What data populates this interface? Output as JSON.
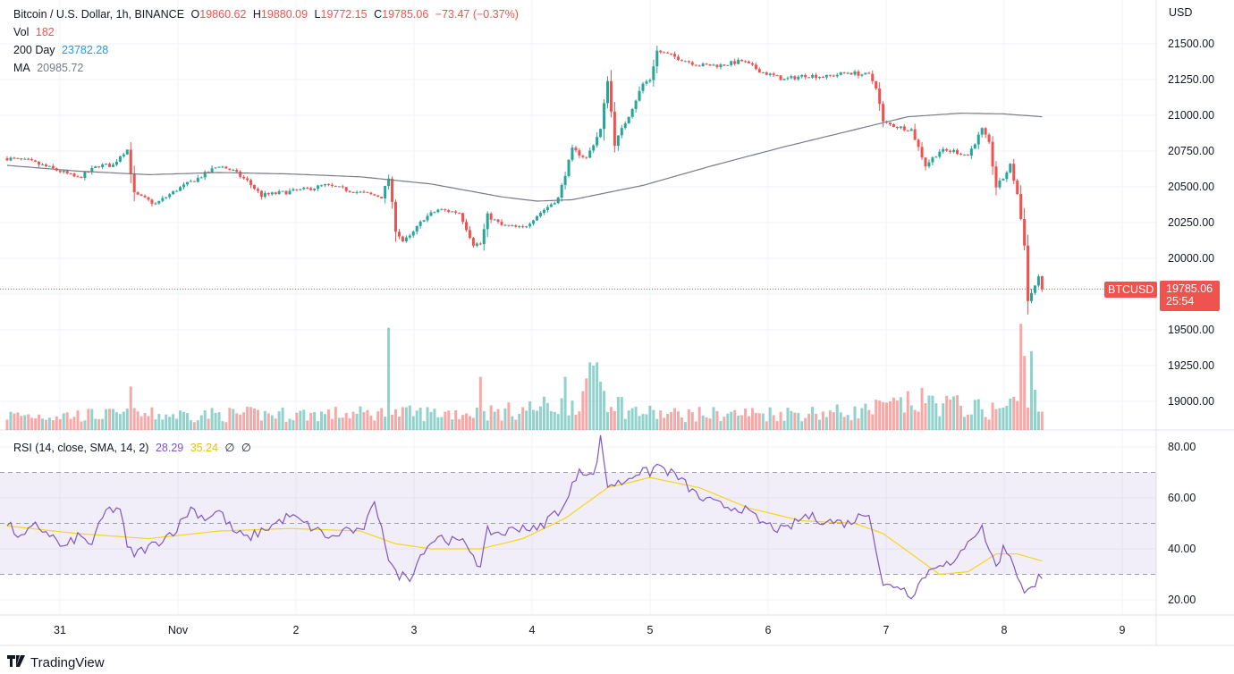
{
  "header": {
    "symbol": "Bitcoin / U.S. Dollar, 1h, BINANCE",
    "o_label": "O",
    "o_value": "19860.62",
    "h_label": "H",
    "h_value": "19880.09",
    "l_label": "L",
    "l_value": "19772.15",
    "c_label": "C",
    "c_value": "19785.06",
    "change": "−73.47 (−0.37%)"
  },
  "vol": {
    "label": "Vol",
    "value": "182"
  },
  "ma200": {
    "label": "200 Day",
    "value": "23782.28"
  },
  "ma": {
    "label": "MA",
    "value": "20985.72"
  },
  "currency": "USD",
  "last_price": {
    "symbol_tag": "BTCUSD",
    "value": "19785.06",
    "countdown": "25:54"
  },
  "rsi_legend": {
    "label": "RSI (14, close, SMA, 14, 2)",
    "rsi": "28.29",
    "sma": "35.24",
    "extra1": "∅",
    "extra2": "∅"
  },
  "branding": {
    "logo_icon": "tradingview-logo-icon",
    "name": "TradingView"
  },
  "colors": {
    "up": "#26a69a",
    "down": "#ef5350",
    "ma_line": "#787b86",
    "rsi_line": "#7e57c2",
    "rsi_sma": "#f5d61a",
    "rsi_band": "#7e57c2"
  },
  "chart_data": [
    {
      "type": "candlestick",
      "title": "Bitcoin / U.S. Dollar, 1h, BINANCE",
      "x_ticks": [
        "31",
        "Nov",
        "2",
        "3",
        "4",
        "5",
        "6",
        "7",
        "8",
        "9"
      ],
      "y_ticks": [
        "21500.00",
        "21250.00",
        "21000.00",
        "20750.00",
        "20500.00",
        "20250.00",
        "20000.00",
        "19750.00",
        "19500.00",
        "19250.00",
        "19000.00"
      ],
      "ylim": [
        18850,
        21750
      ],
      "grid": true,
      "price_anchors": [
        [
          0,
          20700
        ],
        [
          6,
          20680
        ],
        [
          10,
          20650
        ],
        [
          16,
          20600
        ],
        [
          20,
          20560
        ],
        [
          26,
          20650
        ],
        [
          30,
          20650
        ],
        [
          32,
          20720
        ],
        [
          34,
          20760
        ],
        [
          36,
          20450
        ],
        [
          42,
          20380
        ],
        [
          48,
          20480
        ],
        [
          54,
          20560
        ],
        [
          60,
          20650
        ],
        [
          64,
          20610
        ],
        [
          68,
          20540
        ],
        [
          72,
          20440
        ],
        [
          78,
          20460
        ],
        [
          84,
          20480
        ],
        [
          90,
          20510
        ],
        [
          94,
          20490
        ],
        [
          98,
          20470
        ],
        [
          102,
          20450
        ],
        [
          106,
          20430
        ],
        [
          108,
          20560
        ],
        [
          110,
          20200
        ],
        [
          112,
          20120
        ],
        [
          114,
          20150
        ],
        [
          118,
          20280
        ],
        [
          122,
          20340
        ],
        [
          128,
          20320
        ],
        [
          132,
          20100
        ],
        [
          134,
          20100
        ],
        [
          136,
          20300
        ],
        [
          140,
          20230
        ],
        [
          146,
          20210
        ],
        [
          150,
          20300
        ],
        [
          156,
          20420
        ],
        [
          160,
          20760
        ],
        [
          164,
          20700
        ],
        [
          168,
          20900
        ],
        [
          170,
          21250
        ],
        [
          172,
          20800
        ],
        [
          176,
          21000
        ],
        [
          180,
          21220
        ],
        [
          182,
          21250
        ],
        [
          184,
          21450
        ],
        [
          190,
          21400
        ],
        [
          196,
          21350
        ],
        [
          202,
          21350
        ],
        [
          208,
          21380
        ],
        [
          214,
          21300
        ],
        [
          220,
          21250
        ],
        [
          226,
          21280
        ],
        [
          232,
          21270
        ],
        [
          238,
          21300
        ],
        [
          244,
          21280
        ],
        [
          246,
          21200
        ],
        [
          248,
          20950
        ],
        [
          252,
          20920
        ],
        [
          256,
          20900
        ],
        [
          260,
          20650
        ],
        [
          264,
          20750
        ],
        [
          268,
          20750
        ],
        [
          272,
          20720
        ],
        [
          276,
          20900
        ],
        [
          278,
          20800
        ],
        [
          280,
          20500
        ],
        [
          282,
          20560
        ],
        [
          284,
          20650
        ],
        [
          286,
          20450
        ],
        [
          288,
          20100
        ],
        [
          289,
          19700
        ],
        [
          290,
          19760
        ],
        [
          292,
          19860
        ],
        [
          293,
          19785
        ]
      ],
      "ma_anchors": [
        [
          0,
          20650
        ],
        [
          20,
          20610
        ],
        [
          40,
          20585
        ],
        [
          60,
          20600
        ],
        [
          80,
          20590
        ],
        [
          100,
          20570
        ],
        [
          120,
          20520
        ],
        [
          140,
          20430
        ],
        [
          150,
          20400
        ],
        [
          160,
          20410
        ],
        [
          180,
          20510
        ],
        [
          200,
          20650
        ],
        [
          220,
          20780
        ],
        [
          240,
          20900
        ],
        [
          255,
          20990
        ],
        [
          270,
          21015
        ],
        [
          282,
          21010
        ],
        [
          293,
          20990
        ]
      ],
      "volume_ylim": [
        0,
        700
      ],
      "volume_base": [
        [
          0,
          90
        ],
        [
          100,
          100
        ],
        [
          140,
          110
        ],
        [
          158,
          160
        ],
        [
          168,
          250
        ],
        [
          176,
          120
        ],
        [
          186,
          95
        ],
        [
          240,
          110
        ],
        [
          260,
          180
        ],
        [
          278,
          120
        ],
        [
          284,
          150
        ],
        [
          290,
          300
        ],
        [
          293,
          90
        ]
      ],
      "volume_spikes": [
        [
          35,
          270
        ],
        [
          108,
          635
        ],
        [
          134,
          330
        ],
        [
          158,
          330
        ],
        [
          165,
          420
        ],
        [
          166,
          400
        ],
        [
          167,
          420
        ],
        [
          168,
          300
        ],
        [
          287,
          660
        ],
        [
          288,
          460
        ],
        [
          290,
          490
        ],
        [
          291,
          250
        ]
      ],
      "series": [
        {
          "name": "Vol",
          "value": 182
        },
        {
          "name": "200 Day",
          "value": 23782.28
        },
        {
          "name": "MA",
          "value": 20985.72
        }
      ],
      "last": 19785.06
    },
    {
      "type": "line",
      "title": "RSI (14, close, SMA, 14, 2)",
      "y_ticks": [
        "80.00",
        "60.00",
        "40.00",
        "20.00"
      ],
      "ylim": [
        15,
        85
      ],
      "bands": [
        30,
        50,
        70
      ],
      "rsi_anchors": [
        [
          0,
          50
        ],
        [
          4,
          44
        ],
        [
          8,
          49
        ],
        [
          12,
          46
        ],
        [
          16,
          40
        ],
        [
          20,
          45
        ],
        [
          24,
          42
        ],
        [
          28,
          55
        ],
        [
          32,
          56
        ],
        [
          34,
          40
        ],
        [
          36,
          38
        ],
        [
          42,
          42
        ],
        [
          48,
          48
        ],
        [
          52,
          56
        ],
        [
          56,
          52
        ],
        [
          60,
          55
        ],
        [
          64,
          47
        ],
        [
          68,
          44
        ],
        [
          72,
          47
        ],
        [
          76,
          50
        ],
        [
          80,
          53
        ],
        [
          84,
          50
        ],
        [
          88,
          47
        ],
        [
          92,
          44
        ],
        [
          96,
          48
        ],
        [
          100,
          46
        ],
        [
          104,
          57
        ],
        [
          106,
          50
        ],
        [
          108,
          36
        ],
        [
          110,
          30
        ],
        [
          114,
          29
        ],
        [
          118,
          40
        ],
        [
          122,
          45
        ],
        [
          126,
          43
        ],
        [
          130,
          42
        ],
        [
          132,
          38
        ],
        [
          134,
          32
        ],
        [
          136,
          47
        ],
        [
          140,
          46
        ],
        [
          146,
          49
        ],
        [
          150,
          47
        ],
        [
          154,
          53
        ],
        [
          158,
          57
        ],
        [
          162,
          72
        ],
        [
          164,
          70
        ],
        [
          166,
          68
        ],
        [
          168,
          83
        ],
        [
          170,
          65
        ],
        [
          174,
          66
        ],
        [
          178,
          70
        ],
        [
          182,
          70
        ],
        [
          184,
          73
        ],
        [
          190,
          68
        ],
        [
          196,
          60
        ],
        [
          202,
          57
        ],
        [
          208,
          56
        ],
        [
          214,
          50
        ],
        [
          220,
          47
        ],
        [
          226,
          53
        ],
        [
          232,
          51
        ],
        [
          238,
          50
        ],
        [
          244,
          55
        ],
        [
          246,
          40
        ],
        [
          248,
          25
        ],
        [
          252,
          26
        ],
        [
          256,
          22
        ],
        [
          260,
          30
        ],
        [
          264,
          35
        ],
        [
          268,
          33
        ],
        [
          272,
          44
        ],
        [
          276,
          48
        ],
        [
          278,
          40
        ],
        [
          280,
          33
        ],
        [
          282,
          40
        ],
        [
          284,
          38
        ],
        [
          286,
          30
        ],
        [
          288,
          22
        ],
        [
          290,
          24
        ],
        [
          292,
          30
        ],
        [
          293,
          28.29
        ]
      ],
      "sma_anchors": [
        [
          0,
          49
        ],
        [
          20,
          46
        ],
        [
          40,
          44
        ],
        [
          60,
          47
        ],
        [
          80,
          48
        ],
        [
          100,
          47
        ],
        [
          110,
          42
        ],
        [
          120,
          40
        ],
        [
          134,
          40
        ],
        [
          146,
          44
        ],
        [
          158,
          52
        ],
        [
          170,
          64
        ],
        [
          182,
          68
        ],
        [
          196,
          64
        ],
        [
          210,
          56
        ],
        [
          225,
          51
        ],
        [
          240,
          50
        ],
        [
          248,
          46
        ],
        [
          258,
          36
        ],
        [
          264,
          30
        ],
        [
          272,
          31
        ],
        [
          280,
          38
        ],
        [
          286,
          38
        ],
        [
          293,
          35.24
        ]
      ],
      "last_rsi": 28.29,
      "last_sma": 35.24
    }
  ]
}
